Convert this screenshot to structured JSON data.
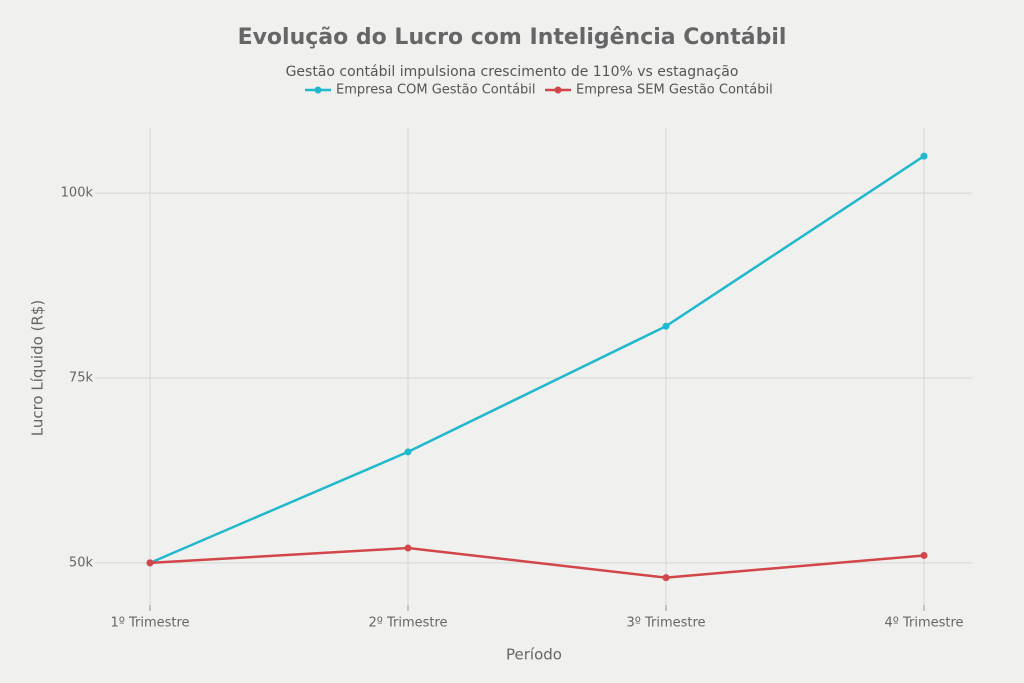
{
  "chart_data": {
    "type": "line",
    "title": "Evolução do Lucro com Inteligência Contábil",
    "subtitle": "Gestão contábil impulsiona crescimento de 110% vs estagnação",
    "x_label": "Período",
    "y_label": "Lucro Líquido (R$)",
    "categories": [
      "1º Trimestre",
      "2º Trimestre",
      "3º Trimestre",
      "4º Trimestre"
    ],
    "series": [
      {
        "name": "Empresa COM Gestão Contábil",
        "color": "#1fb8cd",
        "values": [
          50000,
          65000,
          82000,
          105000
        ]
      },
      {
        "name": "Empresa SEM Gestão Contábil",
        "color": "#d2464a",
        "values": [
          50000,
          52000,
          48000,
          51000
        ]
      }
    ],
    "ylim": [
      44300,
      108800
    ],
    "yticks": [
      {
        "value": 50000,
        "label": "50k"
      },
      {
        "value": 75000,
        "label": "75k"
      },
      {
        "value": 100000,
        "label": "100k"
      }
    ],
    "grid": true
  }
}
